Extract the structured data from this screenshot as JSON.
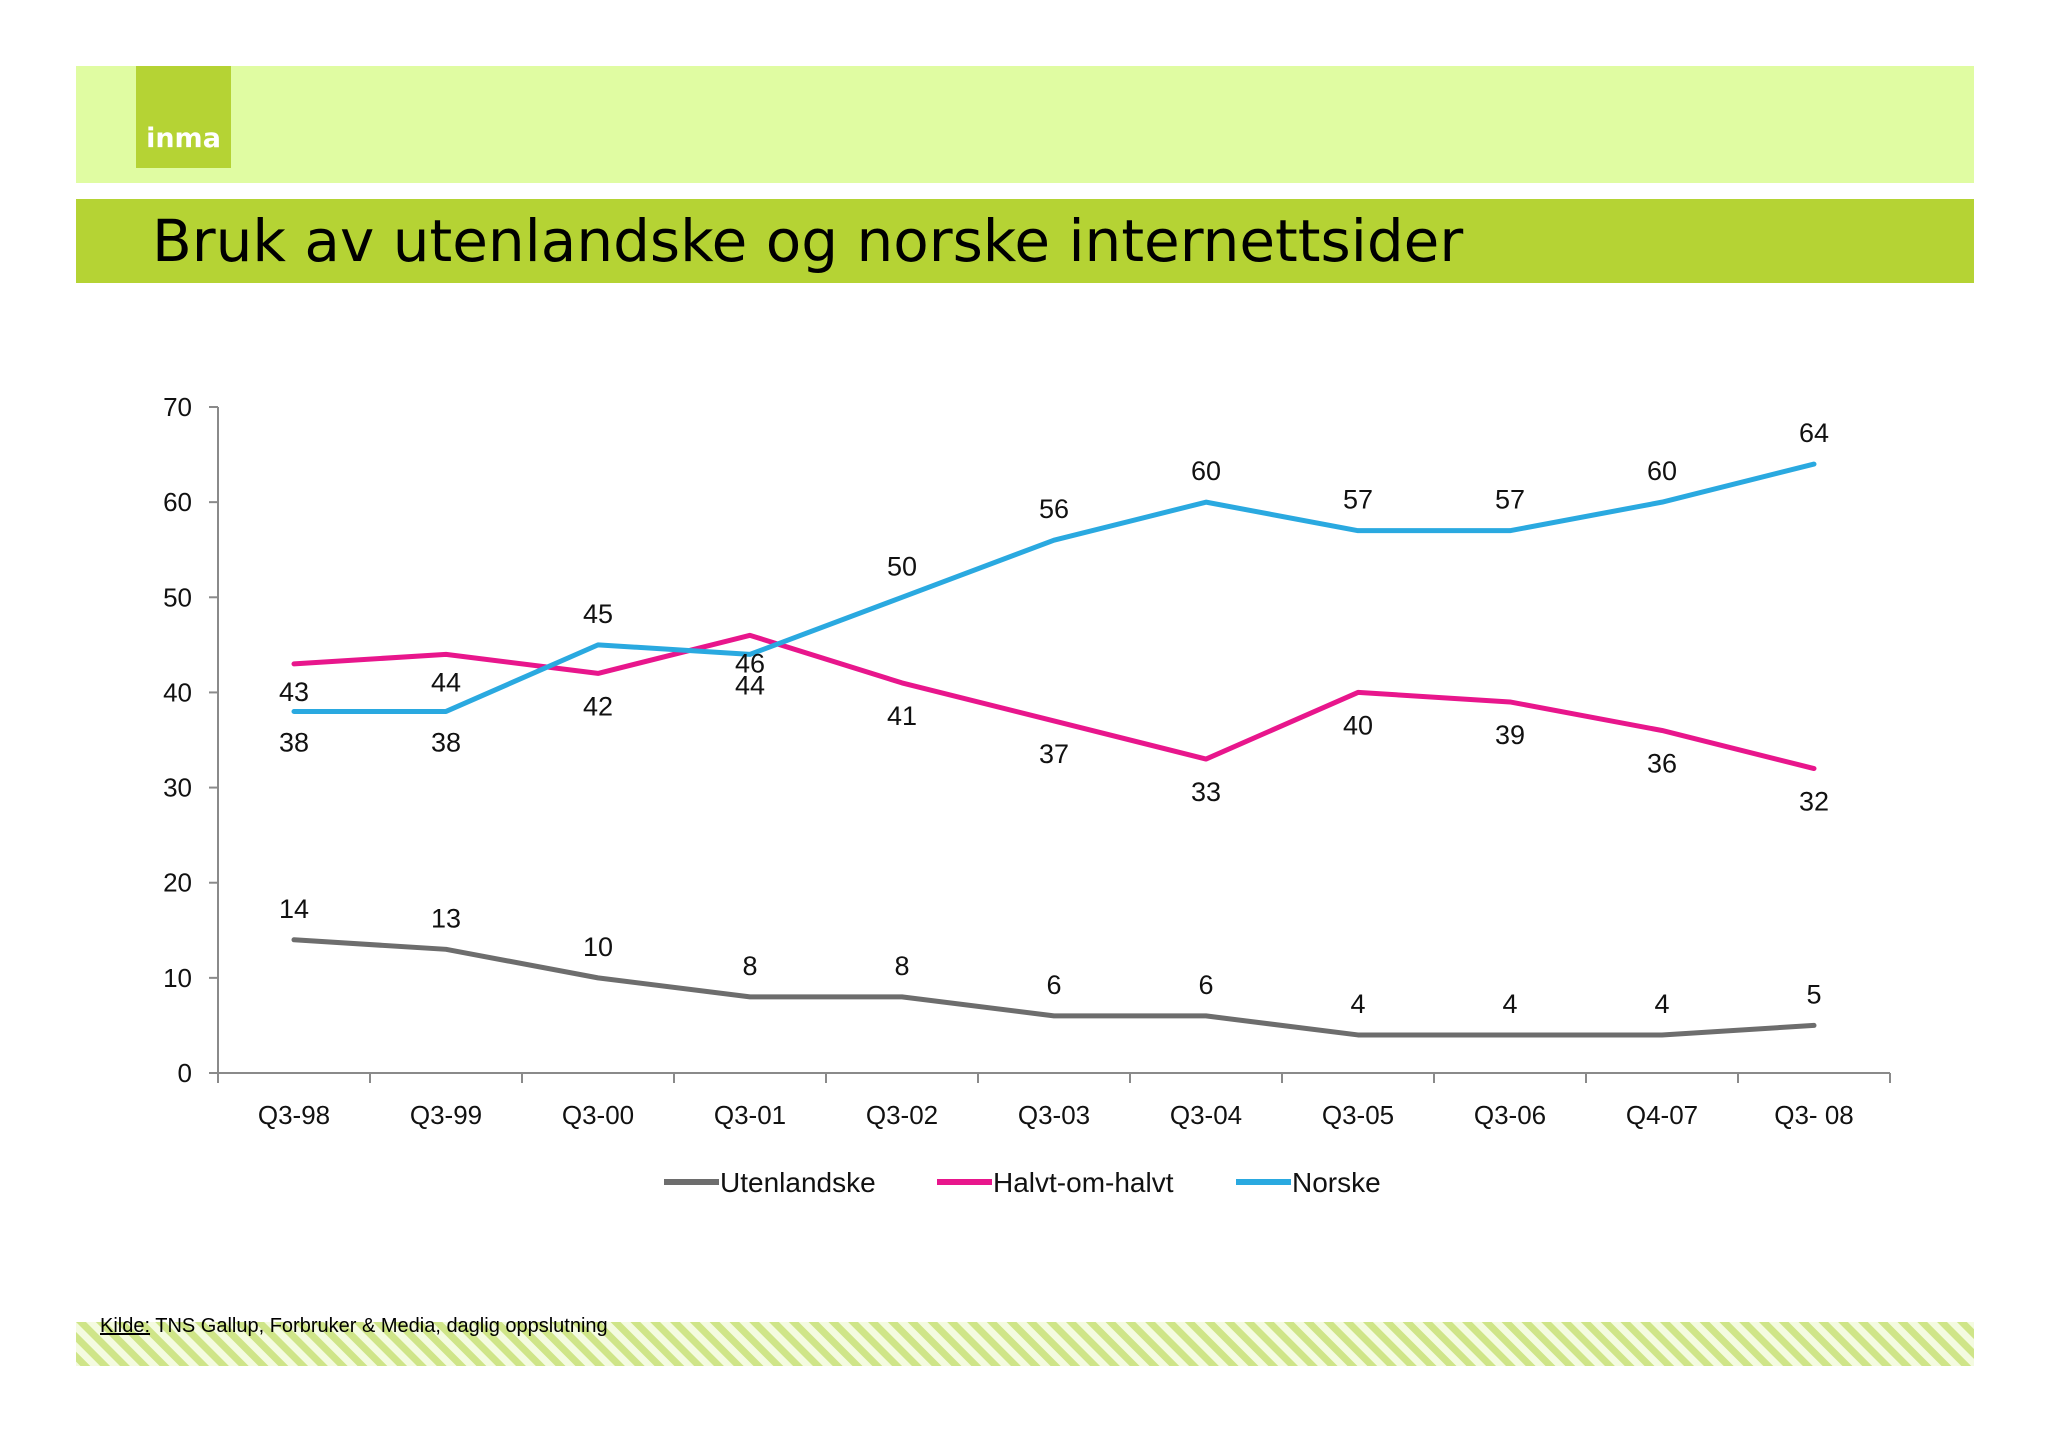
{
  "header": {
    "logo_text": "inma",
    "title": "Bruk av utenlandske og norske internettsider"
  },
  "colors": {
    "top_band": "#e0fca2",
    "title_band": "#b5d334",
    "utenlandske": "#6d6d6d",
    "halvt": "#e8168c",
    "norske": "#2aa9e0"
  },
  "chart_data": {
    "type": "line",
    "categories": [
      "Q3-98",
      "Q3-99",
      "Q3-00",
      "Q3-01",
      "Q3-02",
      "Q3-03",
      "Q3-04",
      "Q3-05",
      "Q3-06",
      "Q4-07",
      "Q3- 08"
    ],
    "series": [
      {
        "name": "Utenlandske",
        "color": "#6d6d6d",
        "values": [
          14,
          13,
          10,
          8,
          8,
          6,
          6,
          4,
          4,
          4,
          5
        ]
      },
      {
        "name": "Halvt-om-halvt",
        "color": "#e8168c",
        "values": [
          43,
          44,
          42,
          46,
          41,
          37,
          33,
          40,
          39,
          36,
          32
        ]
      },
      {
        "name": "Norske",
        "color": "#2aa9e0",
        "values": [
          38,
          38,
          45,
          44,
          50,
          56,
          60,
          57,
          57,
          60,
          64
        ]
      }
    ],
    "ylim": [
      0,
      70
    ],
    "yticks": [
      0,
      10,
      20,
      30,
      40,
      50,
      60,
      70
    ],
    "data_labels": true,
    "grid": false,
    "legend": "bottom"
  },
  "footer": {
    "source_label": "Kilde:",
    "source_text": " TNS Gallup, Forbruker & Media, daglig oppslutning"
  }
}
